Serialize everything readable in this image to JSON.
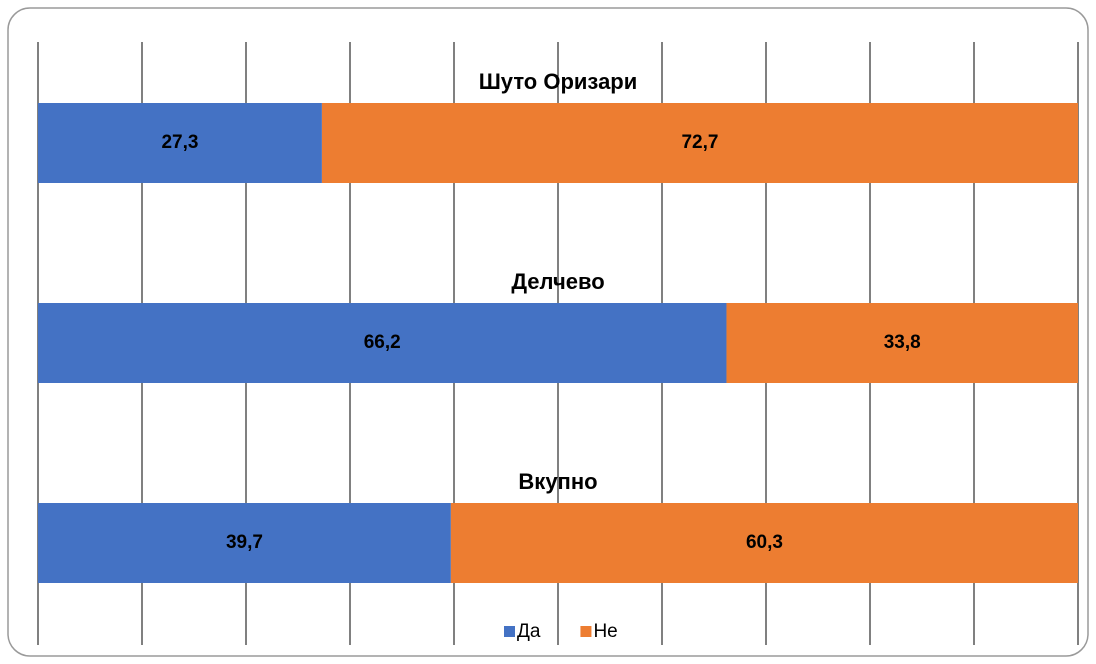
{
  "chart_data": {
    "type": "stacked_bar_horizontal",
    "categories": [
      "Шуто Оризари",
      "Делчево",
      "Вкупно"
    ],
    "series": [
      {
        "name": "Да",
        "color": "#4472c4",
        "values": [
          27.3,
          66.2,
          39.7
        ],
        "value_labels": [
          "27,3",
          "66,2",
          "39,7"
        ]
      },
      {
        "name": "Не",
        "color": "#ed7d31",
        "values": [
          72.7,
          33.8,
          60.3
        ],
        "value_labels": [
          "72,7",
          "33,8",
          "60,3"
        ]
      }
    ],
    "xlim": [
      0,
      100
    ],
    "xticks": [
      0,
      10,
      20,
      30,
      40,
      50,
      60,
      70,
      80,
      90,
      100
    ],
    "grid": true,
    "legend": "bottom"
  }
}
